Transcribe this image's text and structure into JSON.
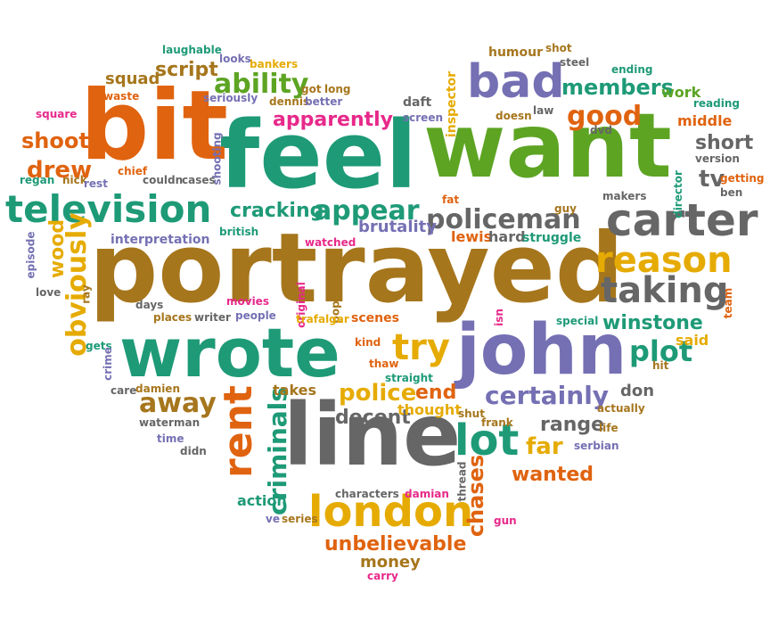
{
  "palette": {
    "orange": "#e0630f",
    "green": "#5da423",
    "teal": "#1e9a77",
    "purple": "#7570b3",
    "brown": "#a6761d",
    "gold": "#e6ab02",
    "pink": "#e7298a",
    "gray": "#666666"
  },
  "words": [
    {
      "text": "portrayed",
      "color": "brown",
      "vertical": false
    },
    {
      "text": "want",
      "color": "green",
      "vertical": false
    },
    {
      "text": "feel",
      "color": "teal",
      "vertical": false
    },
    {
      "text": "bit",
      "color": "orange",
      "vertical": false
    },
    {
      "text": "line",
      "color": "gray",
      "vertical": false
    },
    {
      "text": "john",
      "color": "purple",
      "vertical": false
    },
    {
      "text": "wrote",
      "color": "teal",
      "vertical": false
    },
    {
      "text": "television",
      "color": "teal",
      "vertical": false
    },
    {
      "text": "carter",
      "color": "gray",
      "vertical": false
    },
    {
      "text": "bad",
      "color": "purple",
      "vertical": false
    },
    {
      "text": "london",
      "color": "gold",
      "vertical": false
    },
    {
      "text": "reason",
      "color": "gold",
      "vertical": false
    },
    {
      "text": "taking",
      "color": "gray",
      "vertical": false
    },
    {
      "text": "rent",
      "color": "orange",
      "vertical": true
    },
    {
      "text": "lot",
      "color": "teal",
      "vertical": false
    },
    {
      "text": "policeman",
      "color": "gray",
      "vertical": false
    },
    {
      "text": "try",
      "color": "gold",
      "vertical": false
    },
    {
      "text": "appear",
      "color": "teal",
      "vertical": false
    },
    {
      "text": "ability",
      "color": "green",
      "vertical": false
    },
    {
      "text": "good",
      "color": "orange",
      "vertical": false
    },
    {
      "text": "members",
      "color": "teal",
      "vertical": false
    },
    {
      "text": "certainly",
      "color": "purple",
      "vertical": false
    },
    {
      "text": "plot",
      "color": "teal",
      "vertical": false
    },
    {
      "text": "police",
      "color": "gold",
      "vertical": false
    },
    {
      "text": "away",
      "color": "brown",
      "vertical": false
    },
    {
      "text": "criminals",
      "color": "teal",
      "vertical": true
    },
    {
      "text": "obviously",
      "color": "gold",
      "vertical": true
    },
    {
      "text": "unbelievable",
      "color": "orange",
      "vertical": false
    },
    {
      "text": "winstone",
      "color": "teal",
      "vertical": false
    },
    {
      "text": "chases",
      "color": "orange",
      "vertical": true
    },
    {
      "text": "wanted",
      "color": "orange",
      "vertical": false
    },
    {
      "text": "far",
      "color": "gold",
      "vertical": false
    },
    {
      "text": "decent",
      "color": "gray",
      "vertical": false
    },
    {
      "text": "cracking",
      "color": "teal",
      "vertical": false
    },
    {
      "text": "apparently",
      "color": "pink",
      "vertical": false
    },
    {
      "text": "drew",
      "color": "orange",
      "vertical": false
    },
    {
      "text": "shoot",
      "color": "orange",
      "vertical": false
    },
    {
      "text": "script",
      "color": "brown",
      "vertical": false
    },
    {
      "text": "range",
      "color": "gray",
      "vertical": false
    },
    {
      "text": "end",
      "color": "orange",
      "vertical": false
    },
    {
      "text": "tv",
      "color": "gray",
      "vertical": false
    },
    {
      "text": "short",
      "color": "gray",
      "vertical": false
    },
    {
      "text": "thought",
      "color": "gold",
      "vertical": false
    },
    {
      "text": "lewis",
      "color": "orange",
      "vertical": false
    },
    {
      "text": "hard",
      "color": "gray",
      "vertical": false
    },
    {
      "text": "brutality",
      "color": "purple",
      "vertical": false
    },
    {
      "text": "money",
      "color": "brown",
      "vertical": false
    },
    {
      "text": "squad",
      "color": "brown",
      "vertical": false
    },
    {
      "text": "wood",
      "color": "gold",
      "vertical": true
    },
    {
      "text": "takes",
      "color": "brown",
      "vertical": false
    },
    {
      "text": "scenes",
      "color": "orange",
      "vertical": false
    },
    {
      "text": "action",
      "color": "teal",
      "vertical": false
    },
    {
      "text": "don",
      "color": "gray",
      "vertical": false
    },
    {
      "text": "said",
      "color": "gold",
      "vertical": false
    },
    {
      "text": "work",
      "color": "green",
      "vertical": false
    },
    {
      "text": "middle",
      "color": "orange",
      "vertical": false
    },
    {
      "text": "daft",
      "color": "gray",
      "vertical": false
    },
    {
      "text": "inspector",
      "color": "gold",
      "vertical": true
    },
    {
      "text": "humour",
      "color": "brown",
      "vertical": false
    },
    {
      "text": "interpretation",
      "color": "purple",
      "vertical": false
    },
    {
      "text": "struggle",
      "color": "teal",
      "vertical": false
    },
    {
      "text": "ending",
      "color": "teal",
      "vertical": false
    },
    {
      "text": "steel",
      "color": "gray",
      "vertical": false
    },
    {
      "text": "shot",
      "color": "brown",
      "vertical": false
    },
    {
      "text": "laughable",
      "color": "teal",
      "vertical": false
    },
    {
      "text": "looks",
      "color": "purple",
      "vertical": false
    },
    {
      "text": "bankers",
      "color": "gold",
      "vertical": false
    },
    {
      "text": "got",
      "color": "brown",
      "vertical": false
    },
    {
      "text": "long",
      "color": "brown",
      "vertical": false
    },
    {
      "text": "seriously",
      "color": "purple",
      "vertical": false
    },
    {
      "text": "dennis",
      "color": "brown",
      "vertical": false
    },
    {
      "text": "better",
      "color": "purple",
      "vertical": false
    },
    {
      "text": "waste",
      "color": "orange",
      "vertical": false
    },
    {
      "text": "square",
      "color": "pink",
      "vertical": false
    },
    {
      "text": "screen",
      "color": "purple",
      "vertical": false
    },
    {
      "text": "doesn",
      "color": "brown",
      "vertical": false
    },
    {
      "text": "law",
      "color": "gray",
      "vertical": false
    },
    {
      "text": "dvd",
      "color": "gray",
      "vertical": false
    },
    {
      "text": "reading",
      "color": "teal",
      "vertical": false
    },
    {
      "text": "version",
      "color": "gray",
      "vertical": false
    },
    {
      "text": "getting",
      "color": "orange",
      "vertical": false
    },
    {
      "text": "ben",
      "color": "gray",
      "vertical": false
    },
    {
      "text": "director",
      "color": "teal",
      "vertical": true
    },
    {
      "text": "makers",
      "color": "gray",
      "vertical": false
    },
    {
      "text": "guy",
      "color": "brown",
      "vertical": false
    },
    {
      "text": "fat",
      "color": "orange",
      "vertical": false
    },
    {
      "text": "chief",
      "color": "orange",
      "vertical": false
    },
    {
      "text": "couldn",
      "color": "gray",
      "vertical": false
    },
    {
      "text": "shooting",
      "color": "purple",
      "vertical": true
    },
    {
      "text": "cases",
      "color": "gray",
      "vertical": false
    },
    {
      "text": "regan",
      "color": "teal",
      "vertical": false
    },
    {
      "text": "nick",
      "color": "brown",
      "vertical": false
    },
    {
      "text": "rest",
      "color": "purple",
      "vertical": false
    },
    {
      "text": "british",
      "color": "teal",
      "vertical": false
    },
    {
      "text": "watched",
      "color": "pink",
      "vertical": false
    },
    {
      "text": "episode",
      "color": "purple",
      "vertical": true
    },
    {
      "text": "love",
      "color": "gray",
      "vertical": false
    },
    {
      "text": "ray",
      "color": "brown",
      "vertical": true
    },
    {
      "text": "days",
      "color": "gray",
      "vertical": false
    },
    {
      "text": "movies",
      "color": "pink",
      "vertical": false
    },
    {
      "text": "original",
      "color": "pink",
      "vertical": true
    },
    {
      "text": "pop",
      "color": "brown",
      "vertical": true
    },
    {
      "text": "places",
      "color": "brown",
      "vertical": false
    },
    {
      "text": "writer",
      "color": "gray",
      "vertical": false
    },
    {
      "text": "people",
      "color": "purple",
      "vertical": false
    },
    {
      "text": "trafalgar",
      "color": "gold",
      "vertical": false
    },
    {
      "text": "isn",
      "color": "pink",
      "vertical": true
    },
    {
      "text": "special",
      "color": "teal",
      "vertical": false
    },
    {
      "text": "team",
      "color": "orange",
      "vertical": true
    },
    {
      "text": "kind",
      "color": "orange",
      "vertical": false
    },
    {
      "text": "thaw",
      "color": "orange",
      "vertical": false
    },
    {
      "text": "straight",
      "color": "teal",
      "vertical": false
    },
    {
      "text": "hit",
      "color": "brown",
      "vertical": false
    },
    {
      "text": "gets",
      "color": "teal",
      "vertical": false
    },
    {
      "text": "crime",
      "color": "purple",
      "vertical": true
    },
    {
      "text": "care",
      "color": "gray",
      "vertical": false
    },
    {
      "text": "damien",
      "color": "brown",
      "vertical": false
    },
    {
      "text": "shut",
      "color": "brown",
      "vertical": false
    },
    {
      "text": "frank",
      "color": "brown",
      "vertical": false
    },
    {
      "text": "actually",
      "color": "brown",
      "vertical": false
    },
    {
      "text": "life",
      "color": "brown",
      "vertical": false
    },
    {
      "text": "serbian",
      "color": "purple",
      "vertical": false
    },
    {
      "text": "waterman",
      "color": "gray",
      "vertical": false
    },
    {
      "text": "time",
      "color": "purple",
      "vertical": false
    },
    {
      "text": "didn",
      "color": "gray",
      "vertical": false
    },
    {
      "text": "thread",
      "color": "gray",
      "vertical": true
    },
    {
      "text": "gun",
      "color": "pink",
      "vertical": false
    },
    {
      "text": "characters",
      "color": "gray",
      "vertical": false
    },
    {
      "text": "damian",
      "color": "pink",
      "vertical": false
    },
    {
      "text": "series",
      "color": "brown",
      "vertical": false
    },
    {
      "text": "ve",
      "color": "purple",
      "vertical": false
    },
    {
      "text": "carry",
      "color": "pink",
      "vertical": false
    }
  ]
}
